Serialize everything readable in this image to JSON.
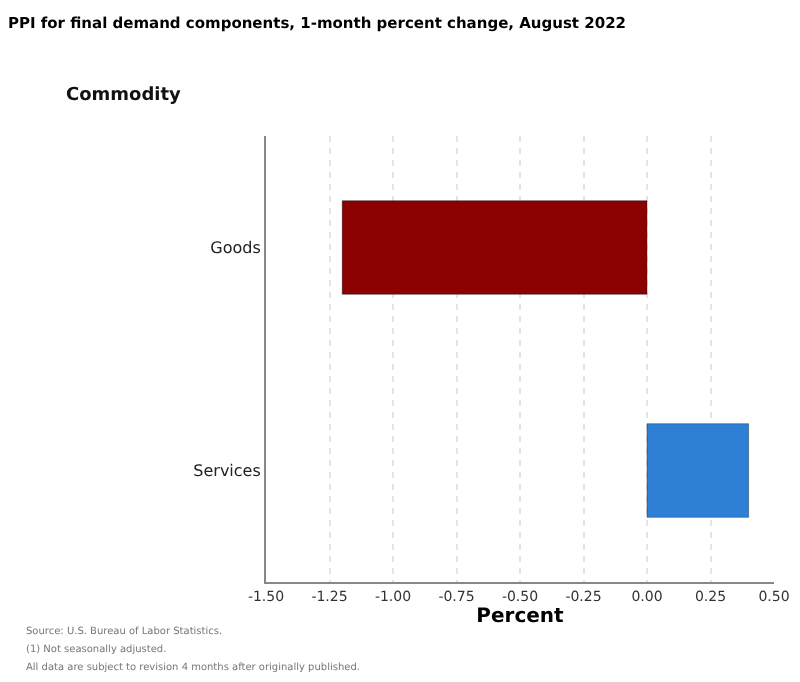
{
  "chart_data": {
    "type": "bar",
    "orientation": "horizontal",
    "title": "PPI for final demand components, 1-month percent change, August 2022",
    "xlabel": "Percent",
    "ylabel": "Commodity",
    "categories": [
      "Goods",
      "Services"
    ],
    "values": [
      -1.2,
      0.4
    ],
    "colors": [
      "#8b0000",
      "#2e7fd6"
    ],
    "xlim": [
      -1.5,
      0.5
    ],
    "xticks": [
      {
        "value": -1.5,
        "label": "-1.50"
      },
      {
        "value": -1.25,
        "label": "-1.25"
      },
      {
        "value": -1,
        "label": "-1.00"
      },
      {
        "value": -0.75,
        "label": "-0.75"
      },
      {
        "value": -0.5,
        "label": "-0.50"
      },
      {
        "value": -0.25,
        "label": "-0.25"
      },
      {
        "value": 0,
        "label": "0.00"
      },
      {
        "value": 0.25,
        "label": "0.25"
      },
      {
        "value": 0.5,
        "label": "0.50"
      }
    ],
    "grid": "x",
    "legend": false,
    "annotations": [
      "Source: U.S. Bureau of Labor Statistics.",
      "(1) Not seasonally adjusted.",
      "All data are subject to revision 4 months after originally published."
    ]
  }
}
